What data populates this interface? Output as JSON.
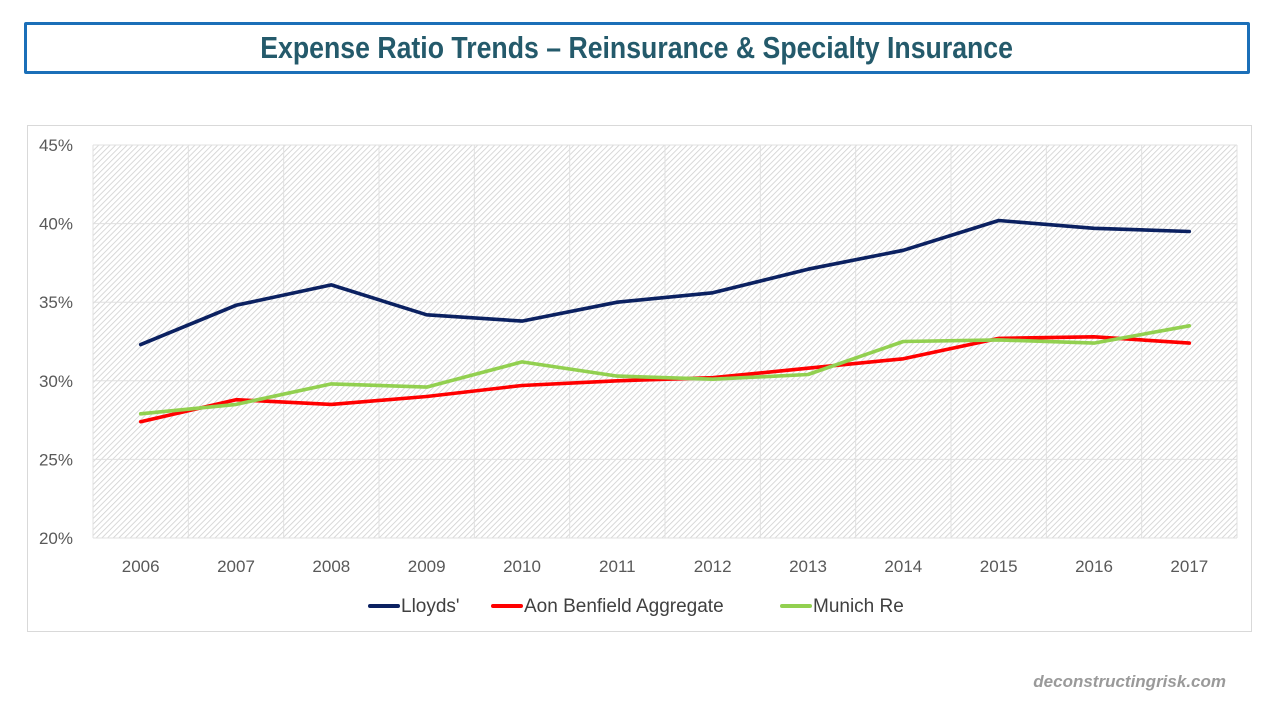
{
  "title": "Expense Ratio Trends – Reinsurance & Specialty Insurance",
  "watermark": "deconstructingrisk.com",
  "chart_data": {
    "type": "line",
    "title": "Expense Ratio Trends – Reinsurance & Specialty Insurance",
    "xlabel": "",
    "ylabel": "",
    "x": [
      "2006",
      "2007",
      "2008",
      "2009",
      "2010",
      "2011",
      "2012",
      "2013",
      "2014",
      "2015",
      "2016",
      "2017"
    ],
    "ylim": [
      20,
      45
    ],
    "yticks": [
      20,
      25,
      30,
      35,
      40,
      45
    ],
    "ytick_labels": [
      "20%",
      "25%",
      "30%",
      "35%",
      "40%",
      "45%"
    ],
    "y_unit": "%",
    "grid": true,
    "legend_position": "bottom",
    "series": [
      {
        "name": "Lloyds'",
        "color": "#0b2161",
        "values": [
          32.3,
          34.8,
          36.1,
          34.2,
          33.8,
          35.0,
          35.6,
          37.1,
          38.3,
          40.2,
          39.7,
          39.5
        ]
      },
      {
        "name": "Aon Benfield Aggregate",
        "color": "#ff0000",
        "values": [
          27.4,
          28.8,
          28.5,
          29.0,
          29.7,
          30.0,
          30.2,
          30.8,
          31.4,
          32.7,
          32.8,
          32.4
        ]
      },
      {
        "name": "Munich Re",
        "color": "#92d050",
        "values": [
          27.9,
          28.5,
          29.8,
          29.6,
          31.2,
          30.3,
          30.1,
          30.4,
          32.5,
          32.6,
          32.4,
          33.5
        ]
      }
    ]
  }
}
